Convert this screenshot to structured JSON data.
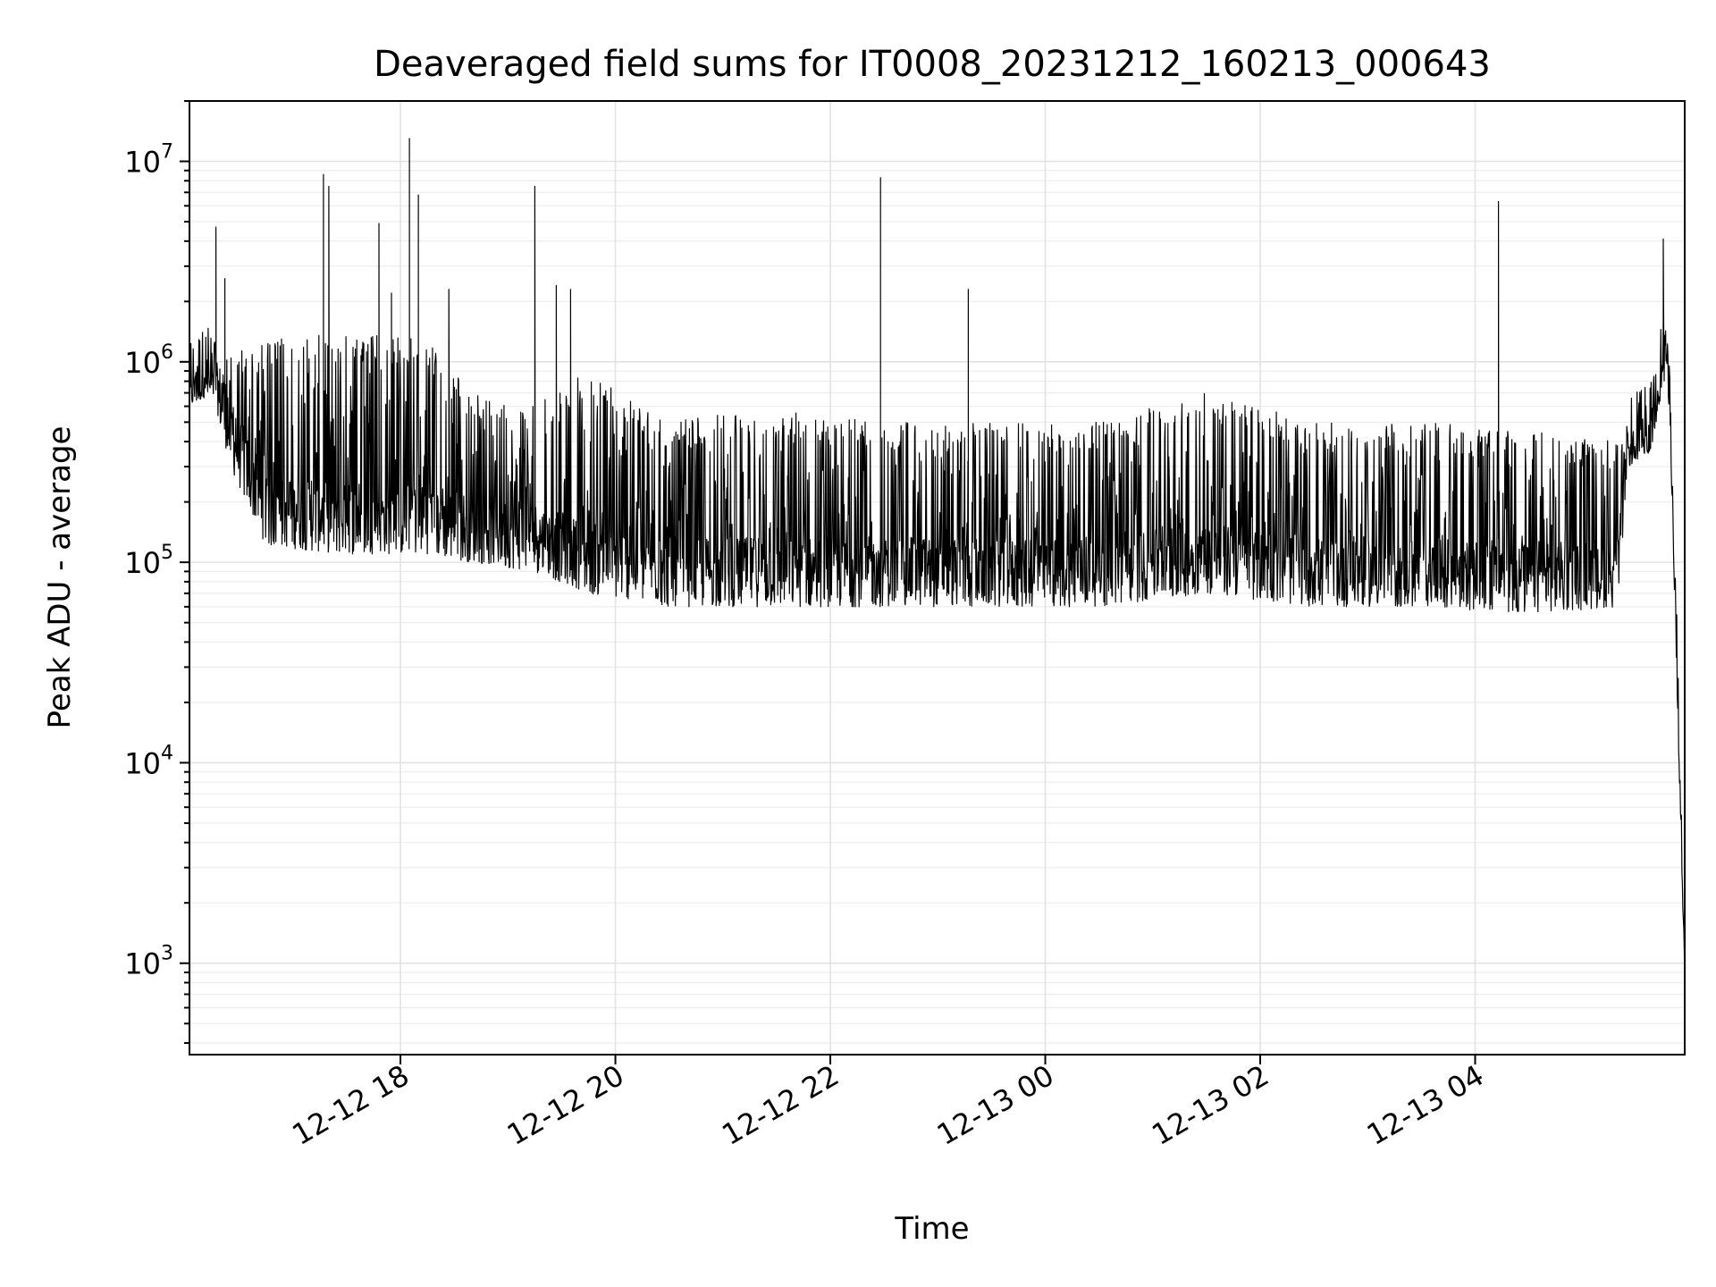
{
  "chart_data": {
    "type": "line",
    "title": "Deaveraged field sums for IT0008_20231212_160213_000643",
    "xlabel": "Time",
    "ylabel": "Peak ADU - average",
    "yscale": "log",
    "grid": true,
    "xlim": [
      "2023-12-12T16:02:13",
      "2023-12-13T05:57:00"
    ],
    "ylim": [
      350,
      20000000
    ],
    "x_ticks": [
      {
        "t": "2023-12-12T18:00:00",
        "label": "12-12 18"
      },
      {
        "t": "2023-12-12T20:00:00",
        "label": "12-12 20"
      },
      {
        "t": "2023-12-12T22:00:00",
        "label": "12-12 22"
      },
      {
        "t": "2023-12-13T00:00:00",
        "label": "12-13 00"
      },
      {
        "t": "2023-12-13T02:00:00",
        "label": "12-13 02"
      },
      {
        "t": "2023-12-13T04:00:00",
        "label": "12-13 04"
      }
    ],
    "y_ticks": [
      {
        "value": 1000,
        "base": "10",
        "exp": "3"
      },
      {
        "value": 10000,
        "base": "10",
        "exp": "4"
      },
      {
        "value": 100000,
        "base": "10",
        "exp": "5"
      },
      {
        "value": 1000000,
        "base": "10",
        "exp": "6"
      },
      {
        "value": 10000000,
        "base": "10",
        "exp": "7"
      }
    ],
    "series": [
      {
        "color": "#000000",
        "baseline_envelope": [
          {
            "t": "2023-12-12T16:02:13",
            "low": 600000,
            "high": 900000
          },
          {
            "t": "2023-12-12T16:15:00",
            "low": 700000,
            "high": 950000
          },
          {
            "t": "2023-12-12T16:25:00",
            "low": 300000,
            "high": 1100000
          },
          {
            "t": "2023-12-12T16:45:00",
            "low": 120000,
            "high": 1300000
          },
          {
            "t": "2023-12-12T17:30:00",
            "low": 110000,
            "high": 1400000
          },
          {
            "t": "2023-12-12T18:15:00",
            "low": 110000,
            "high": 1300000
          },
          {
            "t": "2023-12-12T18:40:00",
            "low": 100000,
            "high": 700000
          },
          {
            "t": "2023-12-12T19:15:00",
            "low": 90000,
            "high": 600000
          },
          {
            "t": "2023-12-12T19:45:00",
            "low": 70000,
            "high": 900000
          },
          {
            "t": "2023-12-12T20:30:00",
            "low": 60000,
            "high": 500000
          },
          {
            "t": "2023-12-12T21:30:00",
            "low": 60000,
            "high": 600000
          },
          {
            "t": "2023-12-12T22:30:00",
            "low": 60000,
            "high": 500000
          },
          {
            "t": "2023-12-12T23:30:00",
            "low": 60000,
            "high": 500000
          },
          {
            "t": "2023-12-13T00:30:00",
            "low": 60000,
            "high": 500000
          },
          {
            "t": "2023-12-13T01:30:00",
            "low": 70000,
            "high": 700000
          },
          {
            "t": "2023-12-13T02:30:00",
            "low": 60000,
            "high": 500000
          },
          {
            "t": "2023-12-13T03:30:00",
            "low": 60000,
            "high": 500000
          },
          {
            "t": "2023-12-13T04:30:00",
            "low": 55000,
            "high": 450000
          },
          {
            "t": "2023-12-13T05:20:00",
            "low": 60000,
            "high": 400000
          },
          {
            "t": "2023-12-13T05:25:00",
            "low": 300000,
            "high": 450000
          },
          {
            "t": "2023-12-13T05:38:00",
            "low": 350000,
            "high": 500000
          },
          {
            "t": "2023-12-13T05:44:00",
            "low": 700000,
            "high": 1200000
          },
          {
            "t": "2023-12-13T05:47:00",
            "low": 900000,
            "high": 1400000
          },
          {
            "t": "2023-12-13T05:50:00",
            "low": 200000,
            "high": 400000
          },
          {
            "t": "2023-12-13T05:52:00",
            "low": 40000,
            "high": 60000
          },
          {
            "t": "2023-12-13T05:54:00",
            "low": 8000,
            "high": 12000
          },
          {
            "t": "2023-12-13T05:56:00",
            "low": 1500,
            "high": 2000
          },
          {
            "t": "2023-12-13T05:57:00",
            "low": 600,
            "high": 800
          }
        ],
        "spikes": [
          {
            "t": "2023-12-12T16:17:00",
            "value": 4700000
          },
          {
            "t": "2023-12-12T16:22:00",
            "value": 2600000
          },
          {
            "t": "2023-12-12T17:17:00",
            "value": 8600000
          },
          {
            "t": "2023-12-12T17:20:00",
            "value": 7500000
          },
          {
            "t": "2023-12-12T17:48:00",
            "value": 4900000
          },
          {
            "t": "2023-12-12T17:55:00",
            "value": 2200000
          },
          {
            "t": "2023-12-12T18:05:00",
            "value": 13000000
          },
          {
            "t": "2023-12-12T18:10:00",
            "value": 6800000
          },
          {
            "t": "2023-12-12T18:27:00",
            "value": 2300000
          },
          {
            "t": "2023-12-12T19:15:00",
            "value": 7500000
          },
          {
            "t": "2023-12-12T19:27:00",
            "value": 2400000
          },
          {
            "t": "2023-12-12T19:35:00",
            "value": 2300000
          },
          {
            "t": "2023-12-12T22:28:00",
            "value": 8300000
          },
          {
            "t": "2023-12-12T23:17:00",
            "value": 2300000
          },
          {
            "t": "2023-12-13T04:13:00",
            "value": 6300000
          },
          {
            "t": "2023-12-13T05:45:00",
            "value": 4100000
          }
        ]
      }
    ]
  }
}
